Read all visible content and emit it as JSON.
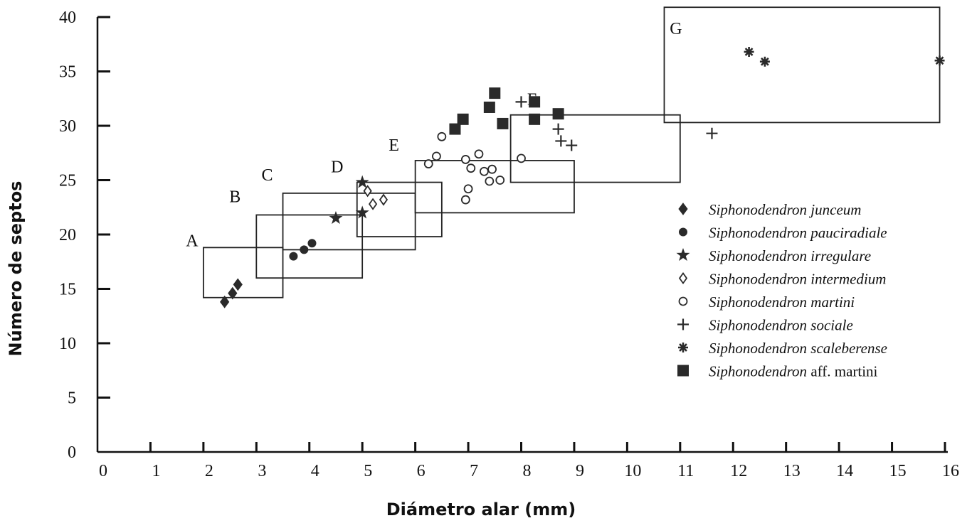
{
  "chart_data": {
    "type": "scatter",
    "xlabel": "Diámetro alar (mm)",
    "ylabel": "Número de septos",
    "xlim": [
      0,
      16
    ],
    "ylim": [
      0,
      40
    ],
    "x_ticks": [
      "0",
      "1",
      "2",
      "3",
      "4",
      "5",
      "6",
      "7",
      "8",
      "9",
      "10",
      "11",
      "12",
      "13",
      "14",
      "15",
      "16"
    ],
    "y_ticks": [
      "0",
      "5",
      "10",
      "15",
      "20",
      "25",
      "30",
      "35",
      "40"
    ],
    "legend_position": "right",
    "groups": [
      {
        "label": "A",
        "x_range": [
          2.0,
          3.5
        ],
        "y_range": [
          14.2,
          18.8
        ]
      },
      {
        "label": "B",
        "x_range": [
          3.0,
          5.0
        ],
        "y_range": [
          16.0,
          21.8
        ]
      },
      {
        "label": "C",
        "x_range": [
          3.5,
          6.0
        ],
        "y_range": [
          18.6,
          23.8
        ]
      },
      {
        "label": "D",
        "x_range": [
          4.9,
          6.5
        ],
        "y_range": [
          19.8,
          24.8
        ]
      },
      {
        "label": "E",
        "x_range": [
          6.0,
          9.0
        ],
        "y_range": [
          22.0,
          26.8
        ]
      },
      {
        "label": "F",
        "x_range": [
          7.8,
          11.0
        ],
        "y_range": [
          24.8,
          31.0
        ]
      },
      {
        "label": "G",
        "x_range": [
          10.7,
          15.9
        ],
        "y_range": [
          30.3,
          40.9
        ]
      }
    ],
    "series": [
      {
        "name": "Siphonodendron junceum",
        "name_italic": "Siphonodendron junceum",
        "name_suffix": "",
        "marker": "diamond-filled",
        "points": [
          [
            2.4,
            13.8
          ],
          [
            2.55,
            14.6
          ],
          [
            2.65,
            15.4
          ]
        ]
      },
      {
        "name": "Siphonodendron pauciradiale",
        "name_italic": "Siphonodendron pauciradiale",
        "name_suffix": "",
        "marker": "circle-filled",
        "points": [
          [
            3.7,
            18.0
          ],
          [
            3.9,
            18.6
          ],
          [
            4.05,
            19.2
          ]
        ]
      },
      {
        "name": "Siphonodendron irregulare",
        "name_italic": "Siphonodendron irregulare",
        "name_suffix": "",
        "marker": "star",
        "points": [
          [
            4.5,
            21.5
          ],
          [
            5.0,
            22.0
          ],
          [
            5.0,
            24.8
          ]
        ]
      },
      {
        "name": "Siphonodendron intermedium",
        "name_italic": "Siphonodendron intermedium",
        "name_suffix": "",
        "marker": "diamond-open",
        "points": [
          [
            5.1,
            24.0
          ],
          [
            5.2,
            22.8
          ],
          [
            5.4,
            23.2
          ]
        ]
      },
      {
        "name": "Siphonodendron martini",
        "name_italic": "Siphonodendron martini",
        "name_suffix": "",
        "marker": "circle-open",
        "points": [
          [
            6.25,
            26.5
          ],
          [
            6.4,
            27.2
          ],
          [
            6.5,
            29.0
          ],
          [
            6.95,
            26.9
          ],
          [
            6.95,
            23.2
          ],
          [
            7.0,
            24.2
          ],
          [
            7.05,
            26.1
          ],
          [
            7.2,
            27.4
          ],
          [
            7.3,
            25.8
          ],
          [
            7.4,
            24.9
          ],
          [
            7.45,
            26.0
          ],
          [
            7.6,
            25.0
          ],
          [
            8.0,
            27.0
          ]
        ]
      },
      {
        "name": "Siphonodendron sociale",
        "name_italic": "Siphonodendron sociale",
        "name_suffix": "",
        "marker": "plus",
        "points": [
          [
            8.0,
            32.2
          ],
          [
            8.7,
            29.7
          ],
          [
            8.75,
            28.6
          ],
          [
            8.95,
            28.2
          ],
          [
            11.6,
            29.3
          ]
        ]
      },
      {
        "name": "Siphonodendron scaleberense",
        "name_italic": "Siphonodendron scaleberense",
        "name_suffix": "",
        "marker": "asterisk",
        "points": [
          [
            12.3,
            36.8
          ],
          [
            12.6,
            35.9
          ],
          [
            15.9,
            36.0
          ]
        ]
      },
      {
        "name": "Siphonodendron aff. martini",
        "name_italic": "Siphonodendron",
        "name_suffix": " aff. martini",
        "marker": "square-filled",
        "points": [
          [
            6.75,
            29.7
          ],
          [
            6.9,
            30.6
          ],
          [
            7.4,
            31.7
          ],
          [
            7.5,
            33.0
          ],
          [
            7.65,
            30.2
          ],
          [
            8.25,
            32.2
          ],
          [
            8.25,
            30.6
          ],
          [
            8.7,
            31.1
          ]
        ]
      }
    ]
  }
}
